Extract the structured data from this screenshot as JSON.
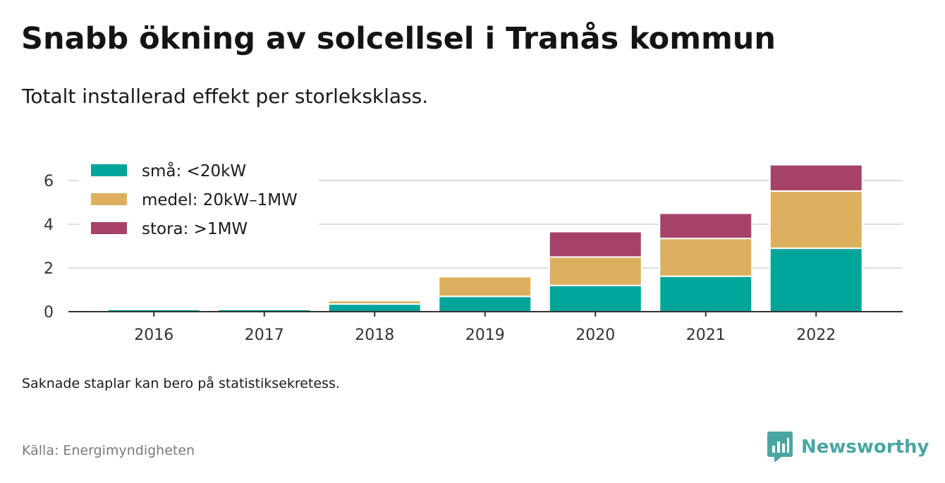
{
  "header": {
    "title": "Snabb ökning av solcellsel i Tranås kommun",
    "subtitle": "Totalt installerad effekt per storleksklass."
  },
  "footer": {
    "note": "Saknade staplar kan bero på statistiksekretess.",
    "source": "Källa: Energimyndigheten",
    "brand": "Newsworthy"
  },
  "colors": {
    "sma": "#00a59a",
    "medel": "#dcb05e",
    "stora": "#a64269",
    "grid": "#dddddd",
    "axis": "#333333",
    "brand": "#4aa6a3"
  },
  "chart_data": {
    "type": "bar",
    "stacked": true,
    "categories": [
      "2016",
      "2017",
      "2018",
      "2019",
      "2020",
      "2021",
      "2022"
    ],
    "series": [
      {
        "name": "små: <20kW",
        "color": "#00a59a",
        "values": [
          0.1,
          0.1,
          0.35,
          0.7,
          1.2,
          1.62,
          2.9
        ]
      },
      {
        "name": "medel: 20kW–1MW",
        "color": "#dcb05e",
        "values": [
          0,
          0,
          0.15,
          0.9,
          1.3,
          1.73,
          2.62
        ]
      },
      {
        "name": "stora: >1MW",
        "color": "#a64269",
        "values": [
          0,
          0,
          0,
          0,
          1.16,
          1.15,
          1.2
        ]
      }
    ],
    "yticks": [
      0,
      2,
      4,
      6
    ],
    "ylim": [
      0,
      6.8
    ],
    "grid": true,
    "legend": "top-left",
    "xlabel": "",
    "ylabel": ""
  }
}
